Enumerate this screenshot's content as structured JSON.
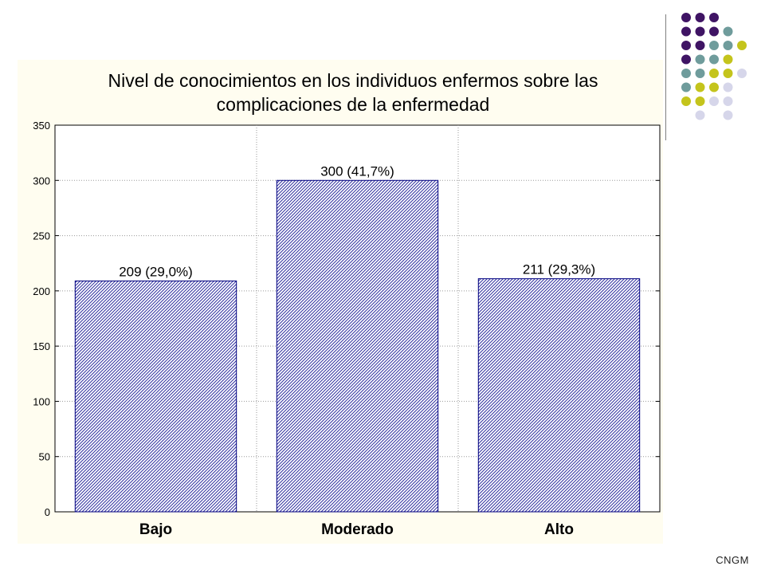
{
  "chart_data": {
    "type": "bar",
    "title_lines": [
      "Nivel de conocimientos en los individuos enfermos sobre las",
      "complicaciones de la enfermedad"
    ],
    "categories": [
      "Bajo",
      "Moderado",
      "Alto"
    ],
    "values": [
      209,
      300,
      211
    ],
    "data_labels": [
      "209 (29,0%)",
      "300 (41,7%)",
      "211 (29,3%)"
    ],
    "ylim": [
      0,
      350
    ],
    "yticks": [
      0,
      50,
      100,
      150,
      200,
      250,
      300,
      350
    ],
    "grid": true,
    "bar_fill": "hatched",
    "colors": {
      "bar_border": "#000080",
      "bar_hatch": "#3030a0",
      "panel_background": "#fffdf0",
      "plot_background": "#ffffff"
    }
  },
  "footer": {
    "text": "CNGM"
  },
  "decoration": {
    "dot_colors": {
      "purple": "#3f1464",
      "teal": "#6f9c9c",
      "olive": "#c4c41c",
      "lavender": "#d6d6ea"
    }
  }
}
